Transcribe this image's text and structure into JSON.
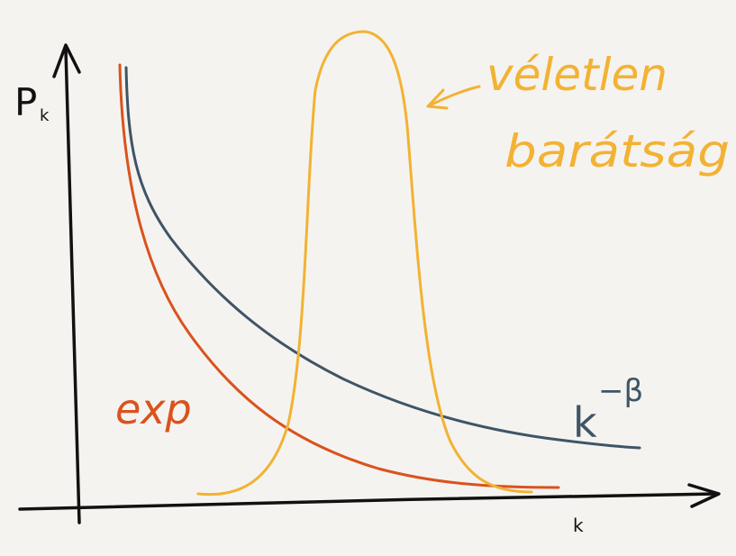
{
  "axes": {
    "y_label": "P",
    "y_subscript": "k",
    "x_label": "k"
  },
  "curves": [
    {
      "label": "exp"
    },
    {
      "label": "k",
      "superscript": "−β"
    },
    {
      "label_lines": [
        "véletlen",
        "barátság"
      ]
    }
  ]
}
